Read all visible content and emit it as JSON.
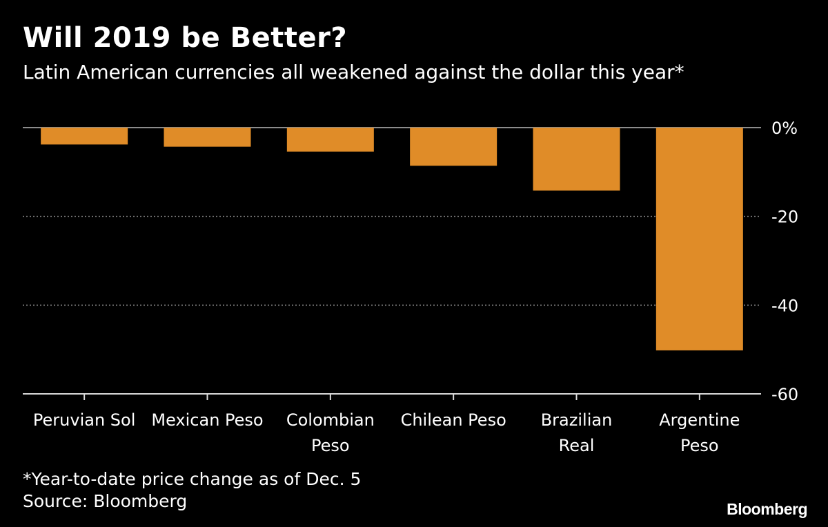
{
  "title": "Will 2019 be Better?",
  "subtitle": "Latin American currencies all weakened against the dollar this year*",
  "footnote": "*Year-to-date price change as of Dec. 5",
  "source": "Source: Bloomberg",
  "brand": "Bloomberg",
  "colors": {
    "bar": "#E08C28",
    "background": "#000000",
    "text": "#FFFFFF",
    "gridline": "#8C8C8C"
  },
  "chart_data": {
    "type": "bar",
    "title": "Will 2019 be Better?",
    "xlabel": "",
    "ylabel": "",
    "categories": [
      [
        "Peruvian Sol"
      ],
      [
        "Mexican Peso"
      ],
      [
        "Colombian",
        "Peso"
      ],
      [
        "Chilean Peso"
      ],
      [
        "Brazilian",
        "Real"
      ],
      [
        "Argentine",
        "Peso"
      ]
    ],
    "values": [
      -3.8,
      -4.3,
      -5.4,
      -8.6,
      -14.2,
      -50.2
    ],
    "ylim": [
      -60,
      0
    ],
    "yticks": [
      0,
      -20,
      -40,
      -60
    ],
    "ytick_labels": [
      "0%",
      "-20",
      "-40",
      "-60"
    ],
    "grid": true,
    "legend": "none"
  }
}
